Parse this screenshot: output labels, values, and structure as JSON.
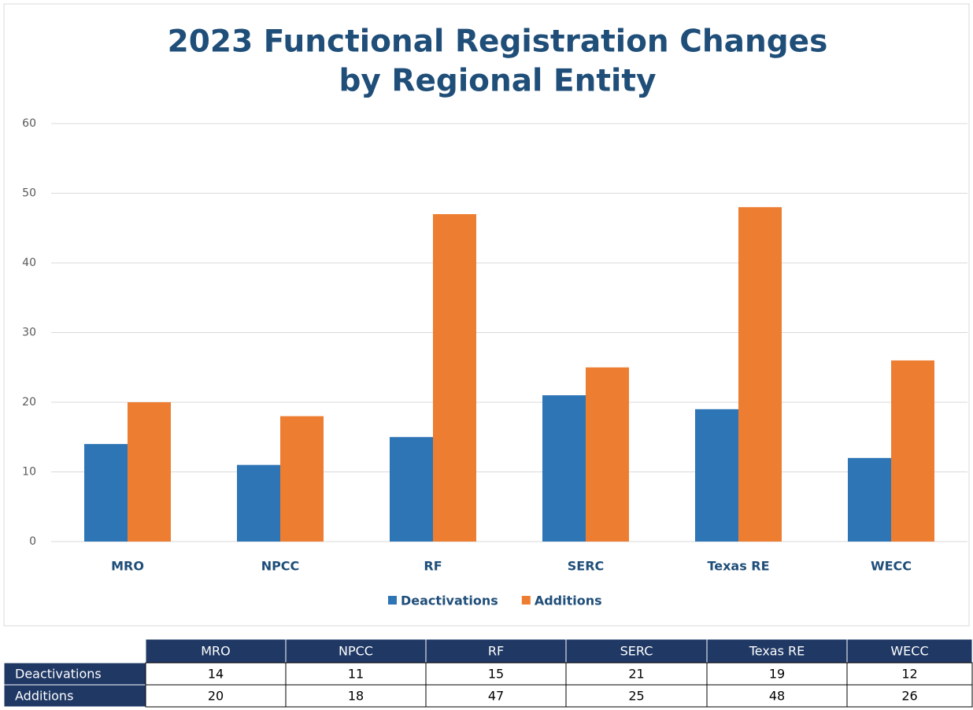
{
  "chart_data": {
    "type": "bar",
    "title": [
      "2023 Functional Registration Changes",
      "by Regional Entity"
    ],
    "categories": [
      "MRO",
      "NPCC",
      "RF",
      "SERC",
      "Texas RE",
      "WECC"
    ],
    "series": [
      {
        "name": "Deactivations",
        "color": "#2e75b6",
        "values": [
          14,
          11,
          15,
          21,
          19,
          12
        ]
      },
      {
        "name": "Additions",
        "color": "#ed7d31",
        "values": [
          20,
          18,
          47,
          25,
          48,
          26
        ]
      }
    ],
    "ylim": [
      0,
      60
    ],
    "yticks": [
      0,
      10,
      20,
      30,
      40,
      50,
      60
    ],
    "grid": true,
    "legend": "bottom"
  }
}
